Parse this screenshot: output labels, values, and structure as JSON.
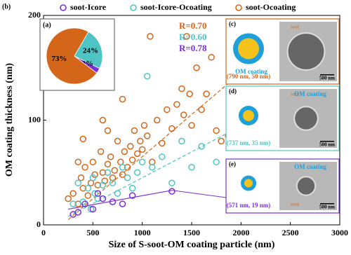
{
  "chart_data": {
    "type": "scatter",
    "panel_label": "(b)",
    "x_label": "Size of S-soot-OM coating particle (nm)",
    "y_label": "OM coating thickness (nm)",
    "xlim": [
      0,
      3000
    ],
    "ylim": [
      0,
      200
    ],
    "xticks": [
      0,
      500,
      1000,
      1500,
      2000,
      2500,
      3000
    ],
    "yticks": [
      0,
      100,
      200
    ],
    "series": [
      {
        "name": "soot-Icore",
        "color": "#7b2fd6",
        "x": [
          300,
          350,
          420,
          500,
          550,
          600,
          700,
          800,
          900,
          1300
        ],
        "values": [
          10,
          12,
          20,
          15,
          30,
          25,
          22,
          20,
          28,
          32
        ]
      },
      {
        "name": "soot-Icore-Ocoating",
        "color": "#4fc4c4",
        "x": [
          300,
          350,
          400,
          450,
          480,
          500,
          520,
          550,
          600,
          650,
          700,
          750,
          800,
          850,
          900,
          950,
          1000,
          1050,
          1100,
          1200,
          1300,
          1400,
          1500,
          1600,
          1750
        ],
        "values": [
          20,
          40,
          22,
          35,
          15,
          45,
          30,
          25,
          38,
          50,
          40,
          30,
          55,
          45,
          35,
          50,
          60,
          142,
          55,
          65,
          40,
          80,
          55,
          75,
          60
        ]
      },
      {
        "name": "soot-Ocoating",
        "color": "#d4661a",
        "x": [
          250,
          300,
          350,
          350,
          380,
          400,
          400,
          420,
          450,
          480,
          500,
          520,
          550,
          580,
          600,
          600,
          620,
          650,
          650,
          680,
          700,
          720,
          750,
          780,
          800,
          800,
          820,
          850,
          880,
          900,
          920,
          950,
          980,
          1000,
          1020,
          1050,
          1080,
          1100,
          1150,
          1200,
          1250,
          1300,
          1350,
          1400,
          1420,
          1450,
          1480,
          1500,
          1550,
          1600,
          1650,
          1700,
          1750,
          1800,
          1870
        ],
        "values": [
          25,
          30,
          20,
          60,
          45,
          35,
          82,
          55,
          28,
          40,
          60,
          48,
          38,
          70,
          50,
          100,
          42,
          58,
          90,
          65,
          45,
          52,
          80,
          60,
          48,
          120,
          70,
          55,
          75,
          62,
          90,
          68,
          80,
          72,
          95,
          85,
          180,
          60,
          100,
          78,
          110,
          92,
          115,
          130,
          105,
          180,
          125,
          95,
          150,
          110,
          125,
          160,
          90,
          80,
          85
        ]
      }
    ],
    "fits": [
      {
        "color": "#d4661a",
        "dashed": true,
        "x": [
          250,
          1870
        ],
        "values": [
          5,
          135
        ]
      },
      {
        "color": "#4fc4c4",
        "dashed": true,
        "x": [
          250,
          1870
        ],
        "values": [
          8,
          88
        ]
      },
      {
        "color": "#7b2fd6",
        "dashed": false,
        "x": [
          250,
          1300
        ],
        "values": [
          15,
          33
        ]
      }
    ],
    "annotations": [
      {
        "text": "R=0.70",
        "color": "#d4661a"
      },
      {
        "text": "R=0.60",
        "color": "#4fc4c4"
      },
      {
        "text": "R=0.78",
        "color": "#7b2fd6"
      }
    ],
    "pie": {
      "label": "(a)",
      "values": [
        24,
        3,
        73
      ],
      "value_labels": [
        "24%",
        "3%",
        "73%"
      ],
      "colors": [
        "#4fc4c4",
        "#7b2fd6",
        "#d4661a"
      ]
    },
    "panels": [
      {
        "label": "(c)",
        "size": "(790 nm, 50 nm)",
        "coating": "OM coating",
        "soot": "soot",
        "scale": "500 nm",
        "color": "#d4661a"
      },
      {
        "label": "(d)",
        "size": "(737 nm, 35 nm)",
        "coating": "OM coating",
        "soot": "soot",
        "scale": "500 nm",
        "color": "#4fc4c4"
      },
      {
        "label": "(e)",
        "size": "(571 nm, 19 nm)",
        "coating": "OM coating",
        "soot": "soot",
        "scale": "500 nm",
        "color": "#7b2fd6"
      }
    ]
  }
}
